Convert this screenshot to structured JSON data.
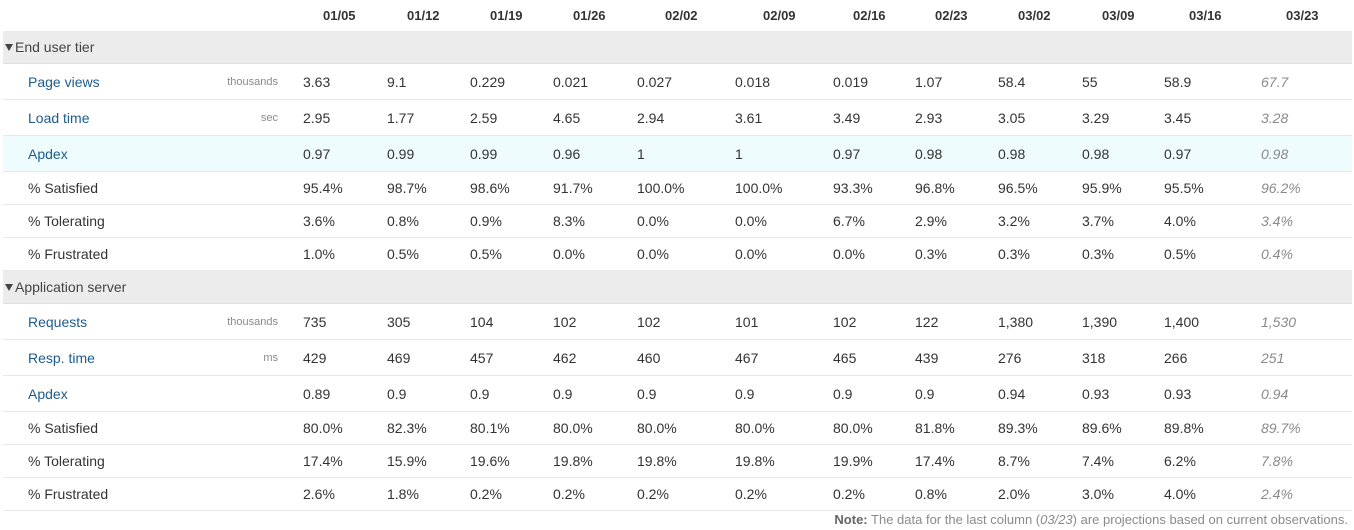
{
  "columns": [
    "01/05",
    "01/12",
    "01/19",
    "01/26",
    "02/02",
    "02/09",
    "02/16",
    "02/23",
    "03/02",
    "03/09",
    "03/16",
    "03/23"
  ],
  "sections": [
    {
      "title": "End user tier",
      "rows": [
        {
          "name": "Page views",
          "unit": "thousands",
          "link": true,
          "values": [
            "3.63",
            "9.1",
            "0.229",
            "0.021",
            "0.027",
            "0.018",
            "0.019",
            "1.07",
            "58.4",
            "55",
            "58.9",
            "67.7"
          ]
        },
        {
          "name": "Load time",
          "unit": "sec",
          "link": true,
          "values": [
            "2.95",
            "1.77",
            "2.59",
            "4.65",
            "2.94",
            "3.61",
            "3.49",
            "2.93",
            "3.05",
            "3.29",
            "3.45",
            "3.28"
          ]
        },
        {
          "name": "Apdex",
          "unit": "",
          "link": true,
          "highlight": true,
          "values": [
            "0.97",
            "0.99",
            "0.99",
            "0.96",
            "1",
            "1",
            "0.97",
            "0.98",
            "0.98",
            "0.98",
            "0.97",
            "0.98"
          ]
        },
        {
          "name": "% Satisfied",
          "unit": "",
          "link": false,
          "values": [
            "95.4%",
            "98.7%",
            "98.6%",
            "91.7%",
            "100.0%",
            "100.0%",
            "93.3%",
            "96.8%",
            "96.5%",
            "95.9%",
            "95.5%",
            "96.2%"
          ]
        },
        {
          "name": "% Tolerating",
          "unit": "",
          "link": false,
          "values": [
            "3.6%",
            "0.8%",
            "0.9%",
            "8.3%",
            "0.0%",
            "0.0%",
            "6.7%",
            "2.9%",
            "3.2%",
            "3.7%",
            "4.0%",
            "3.4%"
          ]
        },
        {
          "name": "% Frustrated",
          "unit": "",
          "link": false,
          "values": [
            "1.0%",
            "0.5%",
            "0.5%",
            "0.0%",
            "0.0%",
            "0.0%",
            "0.0%",
            "0.3%",
            "0.3%",
            "0.3%",
            "0.5%",
            "0.4%"
          ]
        }
      ]
    },
    {
      "title": "Application server",
      "rows": [
        {
          "name": "Requests",
          "unit": "thousands",
          "link": true,
          "values": [
            "735",
            "305",
            "104",
            "102",
            "102",
            "101",
            "102",
            "122",
            "1,380",
            "1,390",
            "1,400",
            "1,530"
          ]
        },
        {
          "name": "Resp. time",
          "unit": "ms",
          "link": true,
          "values": [
            "429",
            "469",
            "457",
            "462",
            "460",
            "467",
            "465",
            "439",
            "276",
            "318",
            "266",
            "251"
          ]
        },
        {
          "name": "Apdex",
          "unit": "",
          "link": true,
          "values": [
            "0.89",
            "0.9",
            "0.9",
            "0.9",
            "0.9",
            "0.9",
            "0.9",
            "0.9",
            "0.94",
            "0.93",
            "0.93",
            "0.94"
          ]
        },
        {
          "name": "% Satisfied",
          "unit": "",
          "link": false,
          "values": [
            "80.0%",
            "82.3%",
            "80.1%",
            "80.0%",
            "80.0%",
            "80.0%",
            "80.0%",
            "81.8%",
            "89.3%",
            "89.6%",
            "89.8%",
            "89.7%"
          ]
        },
        {
          "name": "% Tolerating",
          "unit": "",
          "link": false,
          "values": [
            "17.4%",
            "15.9%",
            "19.6%",
            "19.8%",
            "19.8%",
            "19.8%",
            "19.9%",
            "17.4%",
            "8.7%",
            "7.4%",
            "6.2%",
            "7.8%"
          ]
        },
        {
          "name": "% Frustrated",
          "unit": "",
          "link": false,
          "values": [
            "2.6%",
            "1.8%",
            "0.2%",
            "0.2%",
            "0.2%",
            "0.2%",
            "0.2%",
            "0.8%",
            "2.0%",
            "3.0%",
            "4.0%",
            "2.4%"
          ]
        }
      ]
    }
  ],
  "note": {
    "label": "Note:",
    "before": "The data for the last column (",
    "column": "03/23",
    "after": ") are projections based on current observations."
  }
}
